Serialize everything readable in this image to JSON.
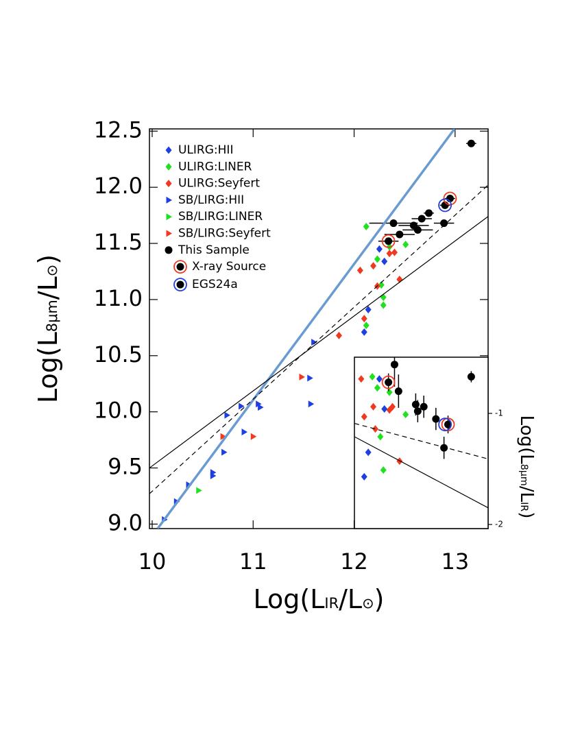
{
  "chart_data": [
    {
      "type": "scatter",
      "xlabel": [
        "Log(L",
        "IR",
        "/L",
        "⊙",
        ")"
      ],
      "ylabel": [
        "Log(L",
        "8μm",
        "/L",
        "⊙",
        ")"
      ],
      "xlim": [
        9.973,
        13.327
      ],
      "ylim": [
        8.96,
        12.52
      ],
      "xticks": [
        10,
        11,
        12,
        13
      ],
      "yticks": [
        {
          "value": 9,
          "label": "9.0"
        },
        9.5,
        {
          "value": 10,
          "label": "10.0"
        },
        10.5,
        {
          "value": 11,
          "label": "11.0"
        },
        11.5,
        {
          "value": 12,
          "label": "12.0"
        },
        12.5
      ],
      "legend": "upper left",
      "series": [
        {
          "name": "ULIRG:HII",
          "color": "#1f3fe0",
          "marker": "diamond",
          "x": [
            12.25,
            12.3,
            12.14,
            12.1
          ],
          "values": [
            11.45,
            11.34,
            10.91,
            10.71
          ]
        },
        {
          "name": "ULIRG:LINER",
          "color": "#22e01f",
          "marker": "diamond",
          "x": [
            12.12,
            12.35,
            12.51,
            12.23,
            12.27,
            12.29,
            12.29,
            12.12
          ],
          "values": [
            11.65,
            11.47,
            11.49,
            11.36,
            11.13,
            11.02,
            10.95,
            10.77
          ]
        },
        {
          "name": "ULIRG:Seyfert",
          "color": "#f03a1f",
          "marker": "diamond",
          "x": [
            12.06,
            12.19,
            12.35,
            12.4,
            12.23,
            12.45,
            12.1,
            11.85
          ],
          "values": [
            11.26,
            11.3,
            11.41,
            11.42,
            11.12,
            11.18,
            10.83,
            10.68
          ]
        },
        {
          "name": "SB/LIRG:HII",
          "color": "#1f3fe0",
          "marker": "triangle",
          "x": [
            10.12,
            10.24,
            10.36,
            10.6,
            10.6,
            10.71,
            10.74,
            10.88,
            10.91,
            11.05,
            11.07,
            11.6,
            11.57,
            11.56
          ],
          "values": [
            9.04,
            9.2,
            9.35,
            9.46,
            9.43,
            9.64,
            9.97,
            10.05,
            9.82,
            10.07,
            10.04,
            10.62,
            10.07,
            10.3
          ]
        },
        {
          "name": "SB/LIRG:LINER",
          "color": "#22e01f",
          "marker": "triangle",
          "x": [
            10.46
          ],
          "values": [
            9.3
          ]
        },
        {
          "name": "SB/LIRG:Seyfert",
          "color": "#f03a1f",
          "marker": "triangle",
          "x": [
            10.7,
            11.0,
            11.48
          ],
          "values": [
            9.78,
            9.78,
            10.31
          ]
        },
        {
          "name": "This Sample",
          "color": "#000000",
          "marker": "circle",
          "x": [
            13.16,
            12.95,
            12.9,
            12.74,
            12.67,
            12.59,
            12.63,
            12.39,
            12.45,
            12.34,
            12.89
          ],
          "values": [
            12.39,
            11.9,
            11.84,
            11.77,
            11.72,
            11.66,
            11.62,
            11.68,
            11.58,
            11.52,
            11.68
          ],
          "xerr": [
            0.05,
            0.05,
            0.05,
            0.05,
            0.1,
            0.15,
            0.15,
            0.24,
            0.15,
            0.1,
            0.1
          ]
        },
        {
          "name": "X-ray Source",
          "color": "#f03a1f",
          "marker": "ring",
          "x": [
            12.34,
            12.95
          ],
          "values": [
            11.52,
            11.9
          ]
        },
        {
          "name": "EGS24a",
          "color": "#1f3fe0",
          "marker": "ring",
          "x": [
            12.9
          ],
          "values": [
            11.84
          ]
        },
        {
          "color": "#6a9bd0",
          "marker": "line",
          "style": "thick",
          "x": [
            10.054,
            12.994
          ],
          "values": [
            8.96,
            12.52
          ]
        },
        {
          "color": "#000000",
          "marker": "line",
          "style": "solid",
          "x": [
            9.973,
            13.327
          ],
          "values": [
            9.5,
            11.74
          ]
        },
        {
          "color": "#000000",
          "marker": "line",
          "style": "dashed",
          "x": [
            9.973,
            13.327
          ],
          "values": [
            9.27,
            12.02
          ]
        }
      ]
    },
    {
      "type": "scatter",
      "y2label": [
        "Log(L",
        "8μm",
        "/L",
        "IR",
        ")"
      ],
      "xlim": [
        12.003,
        13.327
      ],
      "y2lim": [
        -2.037,
        -0.494
      ],
      "y2ticks": [
        -1,
        -2
      ],
      "series": [
        {
          "color": "#1f3fe0",
          "marker": "diamond",
          "axis": "y2",
          "x": [
            12.25,
            12.3,
            12.14,
            12.1
          ],
          "values": [
            -0.69,
            -0.96,
            -1.35,
            -1.57
          ]
        },
        {
          "color": "#22e01f",
          "marker": "diamond",
          "axis": "y2",
          "x": [
            12.18,
            12.23,
            12.51,
            12.35,
            12.26,
            12.29
          ],
          "values": [
            -0.67,
            -0.77,
            -1.01,
            -0.81,
            -1.21,
            -1.51
          ]
        },
        {
          "color": "#f03a1f",
          "marker": "diamond",
          "axis": "y2",
          "x": [
            12.07,
            12.19,
            12.35,
            12.38,
            12.21,
            12.45,
            12.1
          ],
          "values": [
            -0.69,
            -0.94,
            -0.97,
            -0.94,
            -1.14,
            -1.43,
            -1.03
          ]
        },
        {
          "color": "#000000",
          "marker": "circle",
          "axis": "y2",
          "x": [
            12.34,
            12.4,
            12.44,
            12.61,
            12.69,
            12.63,
            12.81,
            12.93,
            12.89,
            13.16
          ],
          "values": [
            -0.72,
            -0.56,
            -0.8,
            -0.92,
            -0.94,
            -0.98,
            -1.05,
            -1.1,
            -1.31,
            -0.67
          ],
          "yerr": [
            0.08,
            0.2,
            0.15,
            0.1,
            0.1,
            0.1,
            0.1,
            0.08,
            0.1,
            0.05
          ]
        },
        {
          "color": "#f03a1f",
          "marker": "ring",
          "axis": "y2",
          "x": [
            12.34,
            12.93
          ],
          "values": [
            -0.72,
            -1.1
          ]
        },
        {
          "color": "#1f3fe0",
          "marker": "ring",
          "axis": "y2",
          "x": [
            12.9
          ],
          "values": [
            -1.1
          ]
        },
        {
          "color": "#000000",
          "marker": "line",
          "style": "solid",
          "axis": "y2",
          "x": [
            12.003,
            13.327
          ],
          "values": [
            -1.21,
            -1.85
          ]
        },
        {
          "color": "#000000",
          "marker": "line",
          "style": "dashed",
          "axis": "y2",
          "x": [
            12.003,
            13.327
          ],
          "values": [
            -1.09,
            -1.41
          ]
        }
      ]
    }
  ]
}
